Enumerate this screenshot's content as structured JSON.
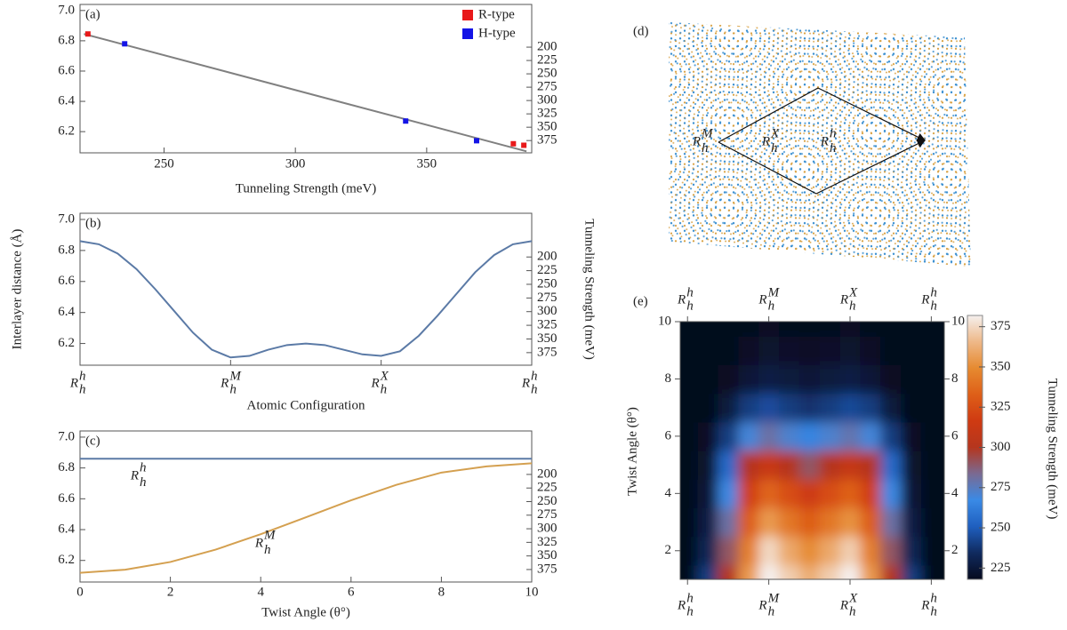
{
  "chart_data": [
    {
      "type": "scatter",
      "panel_label": "(a)",
      "xlabel": "Tunneling Strength (meV)",
      "xlim": [
        218,
        390
      ],
      "xticks": [
        250,
        300,
        350
      ],
      "ylim": [
        6.06,
        7.04
      ],
      "yticks": [
        6.2,
        6.4,
        6.6,
        6.8,
        {
          "value": 7,
          "label": "7.0"
        }
      ],
      "y2lim": [
        398,
        120
      ],
      "y2ticks": [
        200,
        225,
        250,
        275,
        300,
        325,
        350,
        375
      ],
      "legend": "upper right",
      "series": [
        {
          "name": "R-type",
          "color": "#e8191a",
          "x": [
            221,
            383,
            387
          ],
          "values": [
            6.845,
            6.12,
            6.11
          ]
        },
        {
          "name": "H-type",
          "color": "#1414e6",
          "x": [
            235,
            342,
            369
          ],
          "values": [
            6.78,
            6.27,
            6.14
          ]
        }
      ],
      "fit": {
        "color": "#808080",
        "x": [
          219.5,
          388
        ],
        "values": [
          6.845,
          6.07
        ]
      }
    },
    {
      "type": "line",
      "panel_label": "(b)",
      "xlabel": "Atomic Configuration",
      "ylabel": "Interlayer distance (Å)",
      "y2label": "Tunneling Strength (meV)",
      "xlim": [
        0,
        3
      ],
      "xticks": [
        {
          "value": 0,
          "label": {
            "base": "R",
            "sub": "h",
            "sup": "h"
          }
        },
        {
          "value": 1,
          "label": {
            "base": "R",
            "sub": "h",
            "sup": "M"
          }
        },
        {
          "value": 2,
          "label": {
            "base": "R",
            "sub": "h",
            "sup": "X"
          }
        },
        {
          "value": 3,
          "label": {
            "base": "R",
            "sub": "h",
            "sup": "h"
          }
        }
      ],
      "ylim": [
        6.06,
        7.04
      ],
      "yticks": [
        6.2,
        6.4,
        6.6,
        6.8,
        {
          "value": 7,
          "label": "7.0"
        }
      ],
      "y2lim": [
        398,
        120
      ],
      "y2ticks": [
        200,
        225,
        250,
        275,
        300,
        325,
        350,
        375
      ],
      "series": [
        {
          "color": "#5b7aa6",
          "x": [
            0,
            0.125,
            0.25,
            0.375,
            0.5,
            0.625,
            0.75,
            0.875,
            1,
            1.125,
            1.25,
            1.375,
            1.5,
            1.625,
            1.75,
            1.875,
            2,
            2.125,
            2.25,
            2.375,
            2.5,
            2.625,
            2.75,
            2.875,
            3
          ],
          "values": [
            6.86,
            6.84,
            6.78,
            6.68,
            6.55,
            6.41,
            6.27,
            6.16,
            6.11,
            6.12,
            6.16,
            6.19,
            6.2,
            6.19,
            6.16,
            6.13,
            6.12,
            6.15,
            6.25,
            6.38,
            6.52,
            6.66,
            6.77,
            6.84,
            6.86
          ]
        }
      ]
    },
    {
      "type": "line",
      "panel_label": "(c)",
      "xlabel": "Twist Angle (θ°)",
      "xlim": [
        0,
        10
      ],
      "xticks": [
        0,
        2,
        4,
        6,
        8,
        10
      ],
      "ylim": [
        6.06,
        7.04
      ],
      "yticks": [
        6.2,
        6.4,
        6.6,
        6.8,
        {
          "value": 7,
          "label": "7.0"
        }
      ],
      "y2lim": [
        398,
        120
      ],
      "y2ticks": [
        200,
        225,
        250,
        275,
        300,
        325,
        350,
        375
      ],
      "series": [
        {
          "name": {
            "base": "R",
            "sub": "h",
            "sup": "h"
          },
          "color": "#5b7aa6",
          "x": [
            0,
            10
          ],
          "values": [
            6.86,
            6.86
          ]
        },
        {
          "name": {
            "base": "R",
            "sub": "h",
            "sup": "M"
          },
          "color": "#d4a050",
          "x": [
            0,
            1,
            2,
            3,
            4,
            5,
            6,
            7,
            8,
            9,
            10
          ],
          "values": [
            6.12,
            6.14,
            6.19,
            6.27,
            6.37,
            6.48,
            6.59,
            6.69,
            6.77,
            6.81,
            6.83
          ]
        }
      ]
    },
    {
      "type": "heatmap",
      "panel_label": "(e)",
      "ylabel": "Twist Angle (θ°)",
      "xlim": [
        -0.09,
        3.16
      ],
      "xticks": [
        {
          "value": 0,
          "label": {
            "base": "R",
            "sub": "h",
            "sup": "h"
          }
        },
        {
          "value": 1,
          "label": {
            "base": "R",
            "sub": "h",
            "sup": "M"
          }
        },
        {
          "value": 2,
          "label": {
            "base": "R",
            "sub": "h",
            "sup": "X"
          }
        },
        {
          "value": 3,
          "label": {
            "base": "R",
            "sub": "h",
            "sup": "h"
          }
        }
      ],
      "ylim": [
        1,
        10
      ],
      "yticks": [
        2,
        4,
        6,
        8,
        10
      ],
      "x": [
        0,
        0.25,
        0.5,
        0.75,
        1,
        1.25,
        1.5,
        1.75,
        2,
        2.25,
        2.5,
        2.75,
        3
      ],
      "y": [
        1,
        2,
        3,
        4,
        5,
        6,
        7,
        8,
        9,
        10
      ],
      "values": [
        [
          215,
          240,
          300,
          355,
          385,
          372,
          362,
          372,
          383,
          355,
          300,
          240,
          215
        ],
        [
          215,
          232,
          290,
          345,
          375,
          360,
          350,
          360,
          372,
          345,
          290,
          232,
          215
        ],
        [
          215,
          228,
          280,
          332,
          355,
          342,
          332,
          342,
          352,
          332,
          280,
          228,
          215
        ],
        [
          215,
          225,
          268,
          318,
          335,
          325,
          315,
          325,
          333,
          318,
          268,
          225,
          215
        ],
        [
          215,
          222,
          255,
          300,
          312,
          300,
          290,
          300,
          310,
          300,
          255,
          222,
          215
        ],
        [
          215,
          220,
          240,
          270,
          280,
          272,
          265,
          272,
          278,
          270,
          240,
          220,
          215
        ],
        [
          215,
          218,
          226,
          240,
          245,
          240,
          237,
          240,
          244,
          240,
          226,
          218,
          215
        ],
        [
          215,
          216,
          219,
          225,
          228,
          226,
          225,
          226,
          228,
          225,
          219,
          216,
          215
        ],
        [
          215,
          215,
          217,
          220,
          222,
          221,
          220,
          221,
          222,
          220,
          217,
          215,
          215
        ],
        [
          215,
          215,
          216,
          218,
          219,
          218,
          218,
          218,
          219,
          218,
          216,
          215,
          215
        ]
      ],
      "colorbar": {
        "label": "Tunneling Strength (meV)",
        "lim": [
          218,
          382
        ],
        "ticks": [
          225,
          250,
          275,
          300,
          325,
          350,
          375
        ],
        "colors": [
          "#060a1e",
          "#102a5e",
          "#1f5fbf",
          "#3a8ae6",
          "#7a6a92",
          "#b5361e",
          "#cf3a12",
          "#de5f18",
          "#e68a30",
          "#eeb888",
          "#f5f0ee"
        ]
      }
    }
  ],
  "lattice": {
    "panel_label": "(d)",
    "labels": [
      {
        "base": "R",
        "sub": "h",
        "sup": "M"
      },
      {
        "base": "R",
        "sub": "h",
        "sup": "X"
      },
      {
        "base": "R",
        "sub": "h",
        "sup": "h"
      }
    ]
  }
}
